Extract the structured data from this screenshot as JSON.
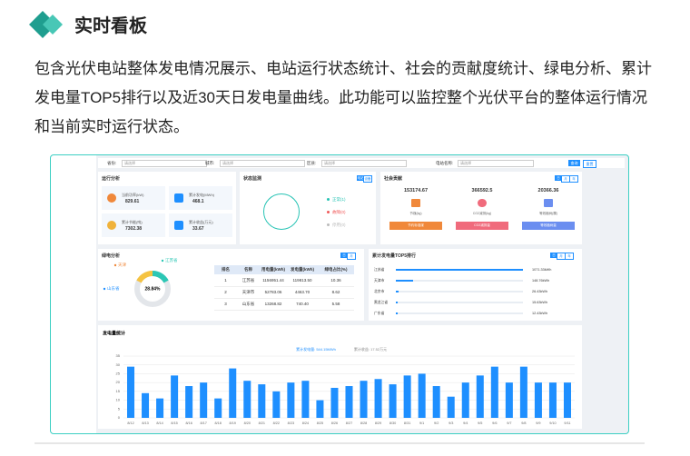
{
  "header": {
    "title": "实时看板"
  },
  "intro": "包含光伏电站整体发电情况展示、电站运行状态统计、社会的贡献度统计、绿电分析、累计发电量TOP5排行以及近30天日发电量曲线。此功能可以监控整个光伏平台的整体运行情况和当前实时运行状态。",
  "dashboard": {
    "filters": [
      {
        "label": "省份:",
        "placeholder": "请选择"
      },
      {
        "label": "城市:",
        "placeholder": "请选择"
      },
      {
        "label": "区县:",
        "placeholder": "请选择"
      },
      {
        "label": "电站名称:",
        "placeholder": "请选择"
      }
    ],
    "buttons": [
      "查询",
      "重置"
    ],
    "operation": {
      "title": "运行分析",
      "items": [
        {
          "label": "当前功率(kW)",
          "value": "829.61"
        },
        {
          "label": "累计发电(MWh)",
          "value": "468.1"
        },
        {
          "label": "累计节能(吨)",
          "value": "7302.38"
        },
        {
          "label": "累计收益(万元)",
          "value": "33.67"
        }
      ]
    },
    "status": {
      "title": "状态监测",
      "tabs": [
        "电站",
        "设备"
      ],
      "legend": [
        "正常(1)",
        "故障(0)",
        "停用(0)"
      ]
    },
    "contribution": {
      "title": "社会贡献",
      "tabs": [
        "日",
        "月",
        "年"
      ],
      "items": [
        {
          "value": "153174.67",
          "unit": "节煤(kg)",
          "button": "节约标准煤"
        },
        {
          "value": "366592.5",
          "unit": "CO2减排(kg)",
          "button": "CO2减排量"
        },
        {
          "value": "20366.36",
          "unit": "等效植树(棵)",
          "button": "等效植树量"
        }
      ]
    },
    "green": {
      "title": "绿电分析",
      "tabs": [
        "日",
        "月"
      ],
      "donut_labels": [
        "天津",
        "江苏省",
        "山东省"
      ],
      "center": "28.84%",
      "table": {
        "columns": [
          "排名",
          "名称",
          "用电量(kWh)",
          "发电量(kWh)",
          "绿电占比(%)"
        ],
        "rows": [
          [
            "1",
            "江苏省",
            "1156951.44",
            "119813.50",
            "10.36"
          ],
          [
            "2",
            "天津市",
            "52783.06",
            "4463.70",
            "8.62"
          ],
          [
            "3",
            "山东省",
            "13268.82",
            "740.40",
            "5.58"
          ]
        ]
      }
    },
    "top5": {
      "title": "累计发电量TOP5排行",
      "tabs": [
        "日",
        "月",
        "年"
      ],
      "items": [
        {
          "name": "江苏省",
          "value": 1071.33,
          "label": "1071.33kWh"
        },
        {
          "name": "天津市",
          "value": 148.76,
          "label": "148.76kWh"
        },
        {
          "name": "北京市",
          "value": 26.43,
          "label": "26.43kWh"
        },
        {
          "name": "黑龙江省",
          "value": 15.63,
          "label": "15.63kWh"
        },
        {
          "name": "广东省",
          "value": 12.43,
          "label": "12.43kWh"
        }
      ]
    }
  },
  "chart_data": {
    "type": "bar",
    "title": "发电量统计",
    "annotations": [
      "累计发电量: 544.15MWh",
      "累计收益: 17.52万元"
    ],
    "categories": [
      "8/12",
      "8/13",
      "8/14",
      "8/15",
      "8/16",
      "8/17",
      "8/18",
      "8/19",
      "8/20",
      "8/21",
      "8/22",
      "8/23",
      "8/24",
      "8/25",
      "8/26",
      "8/27",
      "8/28",
      "8/29",
      "8/30",
      "8/31",
      "9/1",
      "9/2",
      "9/3",
      "9/4",
      "9/5",
      "9/6",
      "9/7",
      "9/8",
      "9/9",
      "9/10",
      "9/11"
    ],
    "values": [
      29,
      14,
      11,
      24,
      18,
      20,
      11,
      28,
      21,
      19,
      15,
      20,
      21,
      10,
      17,
      18,
      21,
      22,
      19,
      24,
      25,
      18,
      12,
      20,
      24,
      29,
      20,
      29,
      20,
      20,
      20
    ],
    "color": "#1e8fff",
    "ylim": [
      0,
      35
    ],
    "yticks": [
      0,
      5,
      10,
      15,
      20,
      25,
      30,
      35
    ],
    "grid": true
  }
}
